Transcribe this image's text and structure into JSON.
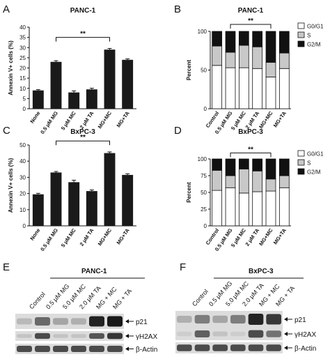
{
  "chart_data": [
    {
      "panel_letter": "A",
      "type": "bar",
      "title": "PANC-1",
      "ylabel": "Annexin V+ cells (%)",
      "ylim": [
        0,
        40
      ],
      "yticks": [
        "0",
        "5",
        "10",
        "15",
        "20",
        "25",
        "30",
        "35",
        "40"
      ],
      "categories": [
        "None",
        "0.5 μM MG",
        "5 μM MC",
        "2 μM TA",
        "MG+MC",
        "MG+TA"
      ],
      "values": [
        9,
        23,
        8,
        9.5,
        29,
        24
      ],
      "errors": [
        0.2,
        0.4,
        0.6,
        0.4,
        0.4,
        0.3
      ],
      "bar_colors": [
        "#1a1a1a",
        "#1a1a1a",
        "#1a1a1a",
        "#1a1a1a",
        "#1a1a1a",
        "#1a1a1a"
      ],
      "significance": {
        "from": 1,
        "to": 4,
        "label": "**"
      }
    },
    {
      "panel_letter": "B",
      "type": "bar",
      "stacked": true,
      "title": "PANC-1",
      "ylabel": "Percent",
      "ylim": [
        0,
        100
      ],
      "yticks": [
        "0",
        "50",
        "100"
      ],
      "categories": [
        "Control",
        "0.5 μM MG",
        "5 μM MC",
        "2 μM TA",
        "MG+MC",
        "MG+TA"
      ],
      "series": [
        {
          "name": "G0/G1",
          "color": "#ffffff",
          "values": [
            56,
            53,
            53,
            52,
            41,
            52
          ]
        },
        {
          "name": "S",
          "color": "#c8c8c8",
          "values": [
            25,
            20,
            29,
            28,
            19,
            20
          ]
        },
        {
          "name": "G2/M",
          "color": "#111111",
          "values": [
            19,
            27,
            18,
            20,
            40,
            28
          ]
        }
      ],
      "legend_position": "right",
      "significance": {
        "from": 1,
        "to": 4,
        "label": "**"
      }
    },
    {
      "panel_letter": "C",
      "type": "bar",
      "title": "BxPC-3",
      "ylabel": "Annexin V+ cells (%)",
      "ylim": [
        0,
        50
      ],
      "yticks": [
        "0",
        "10",
        "20",
        "30",
        "40",
        "50"
      ],
      "categories": [
        "None",
        "0.5 μM MG",
        "5 μM MC",
        "2 μM TA",
        "MG+MC",
        "MG+TA"
      ],
      "values": [
        19.5,
        33,
        27,
        21.5,
        45,
        31.5
      ],
      "errors": [
        0.4,
        0.4,
        1.0,
        0.5,
        0.5,
        0.5
      ],
      "bar_colors": [
        "#1a1a1a",
        "#1a1a1a",
        "#1a1a1a",
        "#1a1a1a",
        "#1a1a1a",
        "#1a1a1a"
      ],
      "significance": {
        "from": 1,
        "to": 4,
        "label": "**"
      }
    },
    {
      "panel_letter": "D",
      "type": "bar",
      "stacked": true,
      "title": "BxPC-3",
      "ylabel": "Percent",
      "ylim": [
        0,
        100
      ],
      "yticks": [
        "0",
        "25",
        "50",
        "75",
        "100"
      ],
      "categories": [
        "Control",
        "0.5 μM MG",
        "5 μM MC",
        "2 μM TA",
        "MG+MC",
        "MG+TA"
      ],
      "series": [
        {
          "name": "G0/G1",
          "color": "#ffffff",
          "values": [
            53,
            57,
            49,
            51,
            52,
            57
          ]
        },
        {
          "name": "S",
          "color": "#c8c8c8",
          "values": [
            30,
            18,
            36,
            31,
            18,
            18
          ]
        },
        {
          "name": "G2/M",
          "color": "#111111",
          "values": [
            17,
            25,
            15,
            18,
            30,
            25
          ]
        }
      ],
      "legend_position": "right",
      "significance": {
        "from": 1,
        "to": 4,
        "label": "**"
      }
    }
  ],
  "blots": [
    {
      "panel_letter": "E",
      "title": "PANC-1",
      "lanes": [
        "Control",
        "0.5 μM MG",
        "5.0 μM MC",
        "2.0 μM TA",
        "MG + MC",
        "MG + TA"
      ],
      "rows": [
        {
          "label": "p21",
          "intensity": [
            0.15,
            0.55,
            0.25,
            0.2,
            0.9,
            0.95
          ]
        },
        {
          "label": "γH2AX",
          "intensity": [
            0.1,
            0.7,
            0.1,
            0.1,
            0.65,
            0.8
          ]
        },
        {
          "label": "β-Actin",
          "intensity": [
            0.7,
            0.7,
            0.7,
            0.7,
            0.7,
            0.7
          ]
        }
      ]
    },
    {
      "panel_letter": "F",
      "title": "BxPC-3",
      "lanes": [
        "Control",
        "0.5 μM MG",
        "5.0 μM MC",
        "2.0 μM TA",
        "MG + MC",
        "MG + TA"
      ],
      "rows": [
        {
          "label": "p21",
          "intensity": [
            0.2,
            0.45,
            0.25,
            0.45,
            0.9,
            0.8
          ]
        },
        {
          "label": "γH2AX",
          "intensity": [
            0.05,
            0.6,
            0.1,
            0.05,
            0.7,
            0.5
          ]
        },
        {
          "label": "β-Actin",
          "intensity": [
            0.7,
            0.7,
            0.7,
            0.7,
            0.7,
            0.7
          ]
        }
      ]
    }
  ]
}
